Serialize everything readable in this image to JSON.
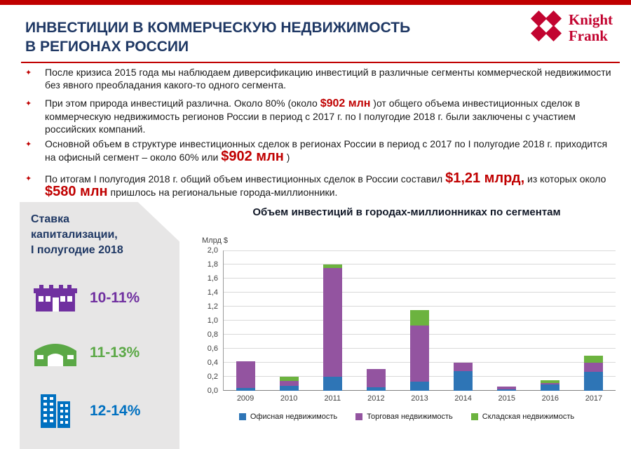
{
  "colors": {
    "accent_red": "#C00000",
    "brand_red": "#C20430",
    "navy": "#1F3864",
    "panel_gray": "#E7E6E6"
  },
  "header": {
    "title_line1": "ИНВЕСТИЦИИ В КОММЕРЧЕСКУЮ НЕДВИЖИМОСТЬ",
    "title_line2": "В РЕГИОНАХ РОССИИ"
  },
  "logo": {
    "line1": "Knight",
    "line2": "Frank"
  },
  "bullet_marker": "✦",
  "bullets": [
    {
      "segments": [
        {
          "text": "После кризиса 2015 года мы наблюдаем диверсификацию инвестиций в различные сегменты коммерческой недвижимости без явного преобладания какого-то одного сегмента."
        }
      ]
    },
    {
      "segments": [
        {
          "text": "При этом природа инвестиций различна. Около 80% (около "
        },
        {
          "text": "$902 млн"
        },
        {
          "text": " )от общего объема инвестиционных сделок в коммерческую недвижимость регионов России в период с 2017 г. по I полугодие 2018 г. были заключены с участием российских компаний."
        }
      ]
    },
    {
      "segments": [
        {
          "text": "Основной объем в структуре  инвестиционных сделок в регионах России в период с 2017 по I полугодие 2018 г. приходится на офисный сегмент – около 60% или "
        },
        {
          "text": "$902 млн"
        },
        {
          "text": " )"
        }
      ]
    },
    {
      "segments": [
        {
          "text": "По итогам I полугодия 2018 г. общий объем инвестиционных сделок в России составил "
        },
        {
          "text": "$1,21 млрд,"
        },
        {
          "text": " из которых около "
        },
        {
          "text": "$580 млн"
        },
        {
          "text": " пришлось на региональные города-миллионники."
        }
      ]
    }
  ],
  "cap_panel": {
    "title_lines": [
      "Ставка",
      "капитализации,",
      "I полугодие 2018"
    ],
    "items": [
      {
        "icon": "retail-building-icon",
        "label": "10-11%",
        "color": "#7030A0"
      },
      {
        "icon": "warehouse-icon",
        "label": "11-13%",
        "color": "#5BA846"
      },
      {
        "icon": "office-buildings-icon",
        "label": "12-14%",
        "color": "#0070C0"
      }
    ]
  },
  "chart_data": {
    "type": "bar",
    "stacked": true,
    "title": "Объем инвестиций в городах-миллионниках по сегментам",
    "ylabel": "Млрд $",
    "xlabel": "",
    "ylim": [
      0,
      2.0
    ],
    "ytick_step": 0.2,
    "grid": true,
    "legend_position": "bottom",
    "categories": [
      "2009",
      "2010",
      "2011",
      "2012",
      "2013",
      "2014",
      "2015",
      "2016",
      "2017"
    ],
    "series": [
      {
        "name": "Офисная недвижимость",
        "color": "#2E75B6",
        "values": [
          0.04,
          0.07,
          0.2,
          0.05,
          0.13,
          0.28,
          0.02,
          0.09,
          0.27
        ]
      },
      {
        "name": "Торговая недвижимость",
        "color": "#9354A0",
        "values": [
          0.38,
          0.07,
          1.55,
          0.26,
          0.8,
          0.12,
          0.04,
          0.02,
          0.13
        ]
      },
      {
        "name": "Складская недвижимость",
        "color": "#6CB33F",
        "values": [
          0.0,
          0.06,
          0.05,
          0.0,
          0.22,
          0.0,
          0.0,
          0.04,
          0.1
        ]
      }
    ]
  }
}
